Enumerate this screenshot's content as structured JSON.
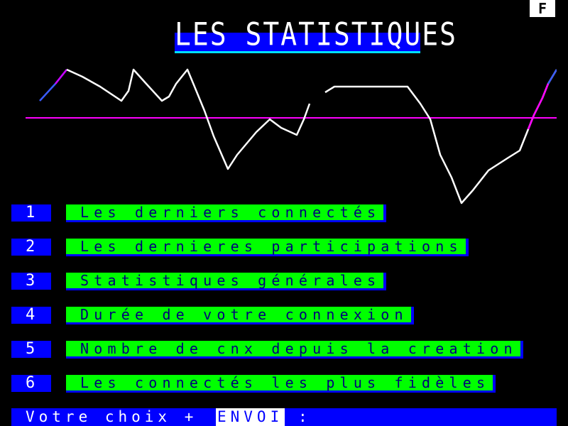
{
  "header": {
    "page_indicator": "F",
    "title": "LES STATISTIQUES"
  },
  "menu": {
    "items": [
      {
        "number": "1",
        "label": "Les derniers connectés"
      },
      {
        "number": "2",
        "label": "Les dernieres participations"
      },
      {
        "number": "3",
        "label": "Statistiques générales"
      },
      {
        "number": "4",
        "label": "Durée de votre connexion"
      },
      {
        "number": "5",
        "label": "Nombre de cnx depuis la creation"
      },
      {
        "number": "6",
        "label": "Les connectés les plus fidèles"
      }
    ]
  },
  "footer": {
    "prompt": "Votre choix +",
    "key": "ENVOI",
    "suffix": ":"
  },
  "colors": {
    "background": "#000000",
    "title_bar": "#0000ff",
    "title_underline": "#00e0ff",
    "menu_label_bg": "#00ff00",
    "menu_label_text": "#00007a",
    "graph_line": "#ffffff",
    "baseline": "#ff00ff"
  }
}
